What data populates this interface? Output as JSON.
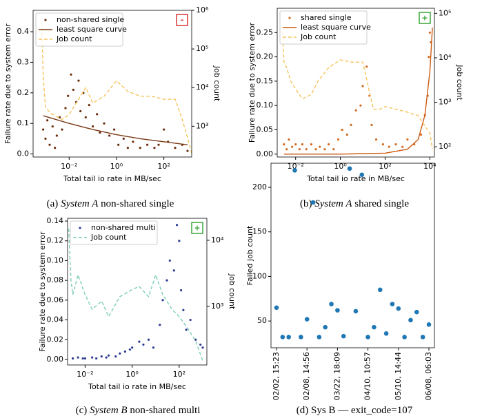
{
  "chart_data": [
    {
      "type": "scatter",
      "xlabel": "Total tail io rate in MB/sec",
      "ylabel": "Failure rate due to system error",
      "y2label": "Job count",
      "xscale": "log",
      "y2scale": "log",
      "legend": "upper left",
      "badge": {
        "text": "-",
        "color": "#d62728"
      },
      "caption": {
        "label": "(a)",
        "system": "System A",
        "rest": "non-shared single"
      },
      "xlim": [
        0.0003,
        1500
      ],
      "xticks": [
        {
          "value": 0.01,
          "label": "10⁻²"
        },
        {
          "value": 1,
          "label": "10⁰"
        },
        {
          "value": 100,
          "label": "10²"
        }
      ],
      "ylim": [
        -0.01,
        0.47
      ],
      "yticks": [
        {
          "value": 0,
          "label": "0.0"
        },
        0.1,
        0.2,
        0.3,
        0.4
      ],
      "y2lim": [
        160,
        1000000
      ],
      "y2ticks": [
        {
          "value": 1000,
          "label": "10³"
        },
        {
          "value": 10000,
          "label": "10⁴"
        },
        {
          "value": 100000,
          "label": "10⁵"
        },
        {
          "value": 1000000,
          "label": "10⁶"
        }
      ],
      "series": [
        {
          "name": "non-shared single",
          "color": "#6b2c0c",
          "style": "dots",
          "x": [
            0.0008,
            0.001,
            0.0012,
            0.0015,
            0.002,
            0.0025,
            0.003,
            0.004,
            0.005,
            0.007,
            0.009,
            0.012,
            0.015,
            0.02,
            0.025,
            0.03,
            0.04,
            0.05,
            0.07,
            0.1,
            0.15,
            0.2,
            0.3,
            0.5,
            0.8,
            1.2,
            2,
            3,
            5,
            10,
            20,
            40,
            60,
            100,
            150,
            300,
            600,
            1000
          ],
          "values": [
            0.08,
            0.05,
            0.11,
            0.03,
            0.09,
            0.02,
            0.06,
            0.12,
            0.08,
            0.15,
            0.19,
            0.26,
            0.21,
            0.17,
            0.24,
            0.14,
            0.2,
            0.12,
            0.16,
            0.09,
            0.13,
            0.07,
            0.1,
            0.06,
            0.08,
            0.03,
            0.05,
            0.02,
            0.04,
            0.02,
            0.03,
            0.02,
            0.03,
            0.08,
            0.04,
            0.02,
            0.03,
            0.01
          ]
        },
        {
          "name": "least square curve",
          "color": "#7b3a14",
          "style": "solid",
          "x": [
            0.0008,
            0.01,
            0.1,
            1,
            10,
            100,
            1000
          ],
          "values": [
            0.125,
            0.1,
            0.08,
            0.063,
            0.05,
            0.04,
            0.03
          ]
        },
        {
          "name": "Job count",
          "color": "#f6c45c",
          "style": "dashed",
          "axis": "y2",
          "x": [
            0.0007,
            0.0008,
            0.001,
            0.002,
            0.005,
            0.01,
            0.02,
            0.05,
            0.1,
            0.3,
            1,
            3,
            10,
            30,
            100,
            300,
            600,
            1000,
            1500
          ],
          "values": [
            500000,
            20000,
            3000,
            2000,
            1500,
            2000,
            4000,
            10000,
            4000,
            6000,
            15000,
            8000,
            6000,
            6000,
            5000,
            5000,
            1500,
            500,
            200
          ]
        }
      ]
    },
    {
      "type": "scatter",
      "xlabel": "Total tail io rate in MB/sec",
      "ylabel": "Failure rate due to system error",
      "y2label": "Job count",
      "xscale": "log",
      "y2scale": "log",
      "legend": "upper left",
      "badge": {
        "text": "+",
        "color": "#2ca02c"
      },
      "caption": {
        "label": "(b)",
        "system": "System A",
        "rest": "shared single"
      },
      "xlim": [
        0.0015,
        16000
      ],
      "xticks": [
        {
          "value": 0.01,
          "label": "10⁻²"
        },
        {
          "value": 1,
          "label": "10⁰"
        },
        {
          "value": 100,
          "label": "10²"
        },
        {
          "value": 10000,
          "label": "10⁴"
        }
      ],
      "ylim": [
        -0.006,
        0.3
      ],
      "yticks": [
        {
          "value": 0,
          "label": "0.00"
        },
        {
          "value": 0.05,
          "label": "0.05"
        },
        {
          "value": 0.1,
          "label": "0.10"
        },
        {
          "value": 0.15,
          "label": "0.15"
        },
        {
          "value": 0.2,
          "label": "0.20"
        },
        {
          "value": 0.25,
          "label": "0.25"
        }
      ],
      "y2lim": [
        59,
        130000
      ],
      "y2ticks": [
        {
          "value": 100,
          "label": "10²"
        },
        {
          "value": 1000,
          "label": "10³"
        },
        {
          "value": 10000,
          "label": "10⁴"
        },
        {
          "value": 100000,
          "label": "10⁵"
        }
      ],
      "series": [
        {
          "name": "shared single",
          "color": "#d2691e",
          "style": "dots",
          "x": [
            0.003,
            0.004,
            0.005,
            0.007,
            0.01,
            0.015,
            0.02,
            0.03,
            0.05,
            0.08,
            0.12,
            0.2,
            0.3,
            0.5,
            0.8,
            1.2,
            2,
            3,
            5,
            8,
            10,
            15,
            20,
            25,
            40,
            80,
            150,
            300,
            600,
            1000,
            2000,
            4000,
            6000,
            8000,
            9000,
            10000,
            11000
          ],
          "values": [
            0.02,
            0.01,
            0.03,
            0.015,
            0.02,
            0.01,
            0.02,
            0.01,
            0.02,
            0.01,
            0.015,
            0.01,
            0.02,
            0.01,
            0.03,
            0.05,
            0.04,
            0.06,
            0.09,
            0.1,
            0.14,
            0.18,
            0.12,
            0.06,
            0.03,
            0.02,
            0.015,
            0.02,
            0.015,
            0.03,
            0.02,
            0.04,
            0.08,
            0.12,
            0.2,
            0.25,
            0.23
          ]
        },
        {
          "name": "least square curve",
          "color": "#cc5a10",
          "style": "solid",
          "x": [
            0.003,
            1,
            100,
            1000,
            3000,
            6000,
            10000,
            13000
          ],
          "values": [
            0,
            0,
            0.002,
            0.01,
            0.03,
            0.08,
            0.17,
            0.26
          ]
        },
        {
          "name": "Job count",
          "color": "#f6c45c",
          "style": "dashed",
          "axis": "y2",
          "x": [
            0.0025,
            0.003,
            0.004,
            0.006,
            0.01,
            0.02,
            0.05,
            0.1,
            0.3,
            1,
            3,
            10,
            30,
            60,
            100,
            300,
            1000,
            3000,
            10000,
            13000
          ],
          "values": [
            50000,
            8000,
            6000,
            3000,
            2000,
            1200,
            1500,
            3000,
            6000,
            9000,
            8000,
            8000,
            700,
            700,
            800,
            700,
            600,
            500,
            200,
            90
          ]
        }
      ]
    },
    {
      "type": "scatter",
      "xlabel": "Total tail io rate in MB/sec",
      "ylabel": "Failure rate due to system error",
      "y2label": "Job count",
      "xscale": "log",
      "y2scale": "log",
      "legend": "upper left",
      "badge": {
        "text": "+",
        "color": "#2ca02c"
      },
      "caption": {
        "label": "(c)",
        "system": "System B",
        "rest": "non-shared multi"
      },
      "xlim": [
        0.0018,
        1500
      ],
      "xticks": [
        {
          "value": 0.01,
          "label": "10⁻²"
        },
        {
          "value": 1,
          "label": "10⁰"
        },
        {
          "value": 100,
          "label": "10²"
        }
      ],
      "ylim": [
        -0.0056,
        0.1428
      ],
      "yticks": [
        {
          "value": 0,
          "label": "0.00"
        },
        {
          "value": 0.02,
          "label": "0.02"
        },
        {
          "value": 0.04,
          "label": "0.04"
        },
        {
          "value": 0.06,
          "label": "0.06"
        },
        {
          "value": 0.08,
          "label": "0.08"
        },
        {
          "value": 0.1,
          "label": "0.10"
        },
        {
          "value": 0.12,
          "label": "0.12"
        },
        {
          "value": 0.14,
          "label": "0.14"
        }
      ],
      "y2lim": [
        130,
        21500
      ],
      "y2ticks": [
        {
          "value": 1000,
          "label": "10³"
        },
        {
          "value": 10000,
          "label": "10⁴"
        }
      ],
      "series": [
        {
          "name": "non-shared multi",
          "color": "#2b3990",
          "style": "dots",
          "x": [
            0.003,
            0.005,
            0.008,
            0.01,
            0.02,
            0.03,
            0.05,
            0.08,
            0.1,
            0.2,
            0.3,
            0.5,
            0.8,
            1,
            2,
            3,
            5,
            8,
            15,
            20,
            30,
            40,
            60,
            80,
            100,
            120,
            150,
            200,
            300,
            500,
            800,
            1000
          ],
          "values": [
            0.001,
            0.002,
            0.001,
            0.001,
            0.002,
            0.001,
            0.003,
            0.002,
            0.004,
            0.003,
            0.006,
            0.008,
            0.01,
            0.012,
            0.018,
            0.015,
            0.02,
            0.012,
            0.035,
            0.06,
            0.08,
            0.1,
            0.09,
            0.136,
            0.12,
            0.07,
            0.05,
            0.03,
            0.04,
            0.02,
            0.015,
            0.012
          ]
        },
        {
          "name": "Job count",
          "color": "#7fcdbb",
          "style": "dashed",
          "axis": "y2",
          "x": [
            0.002,
            0.0025,
            0.003,
            0.005,
            0.01,
            0.02,
            0.05,
            0.1,
            0.3,
            1,
            2,
            5,
            10,
            20,
            50,
            100,
            200,
            500,
            1000
          ],
          "values": [
            15000,
            2500,
            1500,
            3000,
            1500,
            900,
            1200,
            700,
            1400,
            1800,
            2000,
            1400,
            3000,
            1500,
            900,
            700,
            500,
            300,
            150
          ]
        }
      ]
    },
    {
      "type": "category-scatter",
      "ylabel": "Failed job count",
      "color": "#1f77b4",
      "caption": {
        "label": "(d)",
        "rest": "Sys B — exit_code=107"
      },
      "categories": [
        "02/02, 15:23",
        null,
        null,
        null,
        null,
        "02/08, 14:56",
        null,
        null,
        null,
        null,
        "03/22, 18:09",
        null,
        null,
        null,
        null,
        "04/10, 10:57",
        null,
        null,
        null,
        null,
        "05/10, 14:44",
        null,
        null,
        null,
        null,
        "06/08, 06:03"
      ],
      "values": [
        65,
        32,
        32,
        219,
        32,
        52,
        183,
        32,
        43,
        69,
        62,
        33,
        221,
        61,
        214,
        32,
        43,
        85,
        36,
        69,
        64,
        32,
        51,
        60,
        32,
        46
      ],
      "ylim": [
        20,
        227
      ],
      "yticks": [
        50,
        100,
        150,
        200
      ]
    }
  ]
}
